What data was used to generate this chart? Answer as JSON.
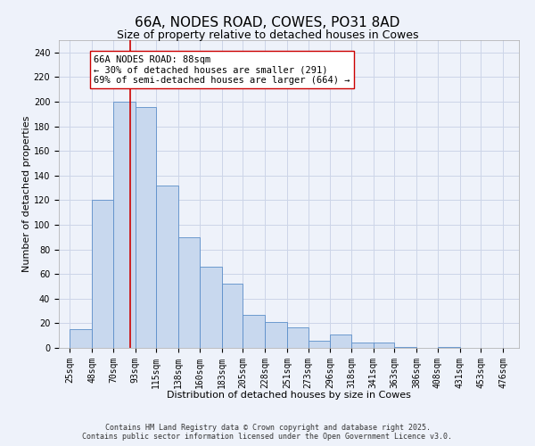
{
  "title": "66A, NODES ROAD, COWES, PO31 8AD",
  "subtitle": "Size of property relative to detached houses in Cowes",
  "xlabel": "Distribution of detached houses by size in Cowes",
  "ylabel": "Number of detached properties",
  "bin_edges": [
    25,
    48,
    70,
    93,
    115,
    138,
    160,
    183,
    205,
    228,
    251,
    273,
    296,
    318,
    341,
    363,
    386,
    408,
    431,
    453,
    476
  ],
  "bar_heights": [
    15,
    120,
    200,
    196,
    132,
    90,
    66,
    52,
    27,
    21,
    17,
    6,
    11,
    4,
    4,
    1,
    0,
    1,
    0,
    0
  ],
  "bar_color": "#c8d8ee",
  "bar_edgecolor": "#5b8ec9",
  "ylim": [
    0,
    250
  ],
  "yticks": [
    0,
    20,
    40,
    60,
    80,
    100,
    120,
    140,
    160,
    180,
    200,
    220,
    240
  ],
  "red_line_x": 88,
  "annotation_title": "66A NODES ROAD: 88sqm",
  "annotation_line1": "← 30% of detached houses are smaller (291)",
  "annotation_line2": "69% of semi-detached houses are larger (664) →",
  "grid_color": "#ccd5e8",
  "background_color": "#eef2fa",
  "footer_line1": "Contains HM Land Registry data © Crown copyright and database right 2025.",
  "footer_line2": "Contains public sector information licensed under the Open Government Licence v3.0.",
  "title_fontsize": 11,
  "subtitle_fontsize": 9,
  "axis_label_fontsize": 8,
  "tick_fontsize": 7,
  "annotation_fontsize": 7.5,
  "footer_fontsize": 6
}
